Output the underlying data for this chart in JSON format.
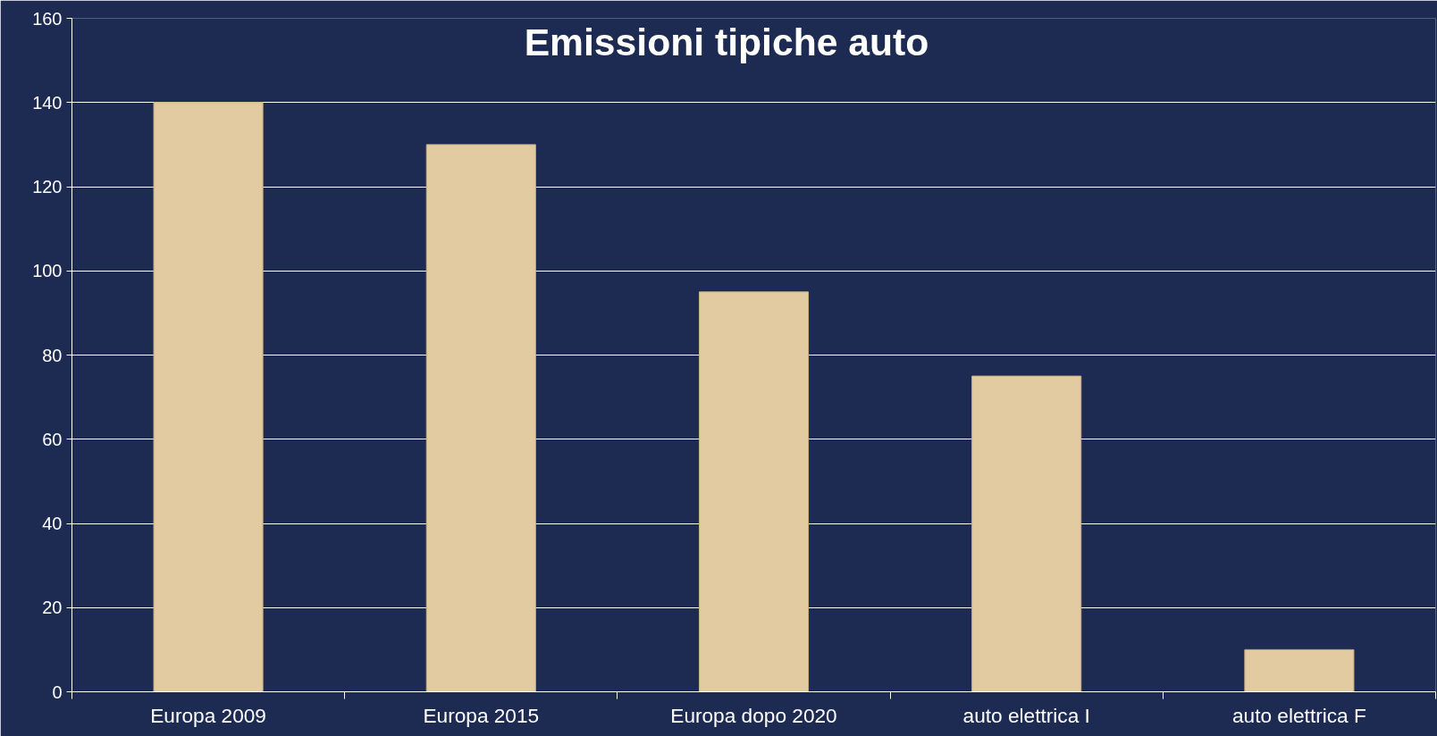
{
  "chart_data": {
    "type": "bar",
    "title": "Emissioni tipiche auto",
    "categories": [
      "Europa 2009",
      "Europa 2015",
      "Europa dopo 2020",
      "auto elettrica I",
      "auto elettrica F"
    ],
    "values": [
      140,
      130,
      95,
      75,
      10
    ],
    "color": "#e2cba0",
    "ylim": [
      0,
      160
    ],
    "yticks": [
      0,
      20,
      40,
      60,
      80,
      100,
      120,
      140,
      160
    ],
    "grid": "y"
  }
}
